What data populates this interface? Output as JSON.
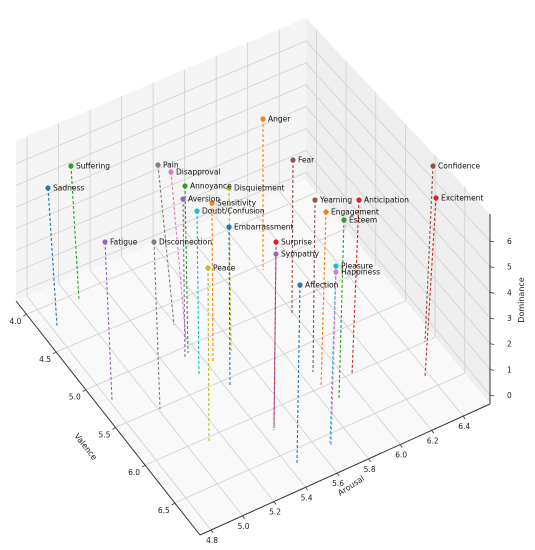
{
  "chart_data": {
    "type": "scatter",
    "title": "",
    "xlabel": "Valence",
    "ylabel": "Arousal",
    "zlabel": "Dominance",
    "xlim": [
      3.8,
      6.7
    ],
    "ylim": [
      4.8,
      6.4
    ],
    "zlim": [
      0,
      6.5
    ],
    "xticks": [
      "4.0",
      "4.5",
      "5.0",
      "5.5",
      "6.0",
      "6.5"
    ],
    "yticks": [
      "4.8",
      "5.0",
      "5.2",
      "5.4",
      "5.6",
      "5.8",
      "6.0",
      "6.2",
      "6.4"
    ],
    "zticks": [
      "0",
      "1",
      "2",
      "3",
      "4",
      "5",
      "6"
    ],
    "grid": true,
    "drop_lines": true,
    "points": [
      {
        "label": "Suffering",
        "color": "#2ca02c"
      },
      {
        "label": "Sadness",
        "color": "#1f77b4"
      },
      {
        "label": "Pain",
        "color": "#7f7f7f"
      },
      {
        "label": "Disapproval",
        "color": "#e377c2"
      },
      {
        "label": "Anger",
        "color": "#ff7f0e"
      },
      {
        "label": "Fear",
        "color": "#8c564b"
      },
      {
        "label": "Confidence",
        "color": "#8c564b"
      },
      {
        "label": "Excitement",
        "color": "#d62728"
      },
      {
        "label": "Annoyance",
        "color": "#2ca02c"
      },
      {
        "label": "Disquietment",
        "color": "#bcbd22"
      },
      {
        "label": "Aversion",
        "color": "#9467bd"
      },
      {
        "label": "Sensitivity",
        "color": "#ff7f0e"
      },
      {
        "label": "Doubt/Confusion",
        "color": "#17becf"
      },
      {
        "label": "Yearning",
        "color": "#8c564b"
      },
      {
        "label": "Anticipation",
        "color": "#d62728"
      },
      {
        "label": "Engagement",
        "color": "#ff7f0e"
      },
      {
        "label": "Esteem",
        "color": "#2ca02c"
      },
      {
        "label": "Fatigue",
        "color": "#9467bd"
      },
      {
        "label": "Disconnection",
        "color": "#7f7f7f"
      },
      {
        "label": "Embarrassment",
        "color": "#1f77b4"
      },
      {
        "label": "Surprise",
        "color": "#d62728"
      },
      {
        "label": "Sympathy",
        "color": "#9467bd"
      },
      {
        "label": "Peace",
        "color": "#bcbd22"
      },
      {
        "label": "Pleasure",
        "color": "#17becf"
      },
      {
        "label": "Happiness",
        "color": "#e377c2"
      },
      {
        "label": "Affection",
        "color": "#1f77b4"
      }
    ]
  }
}
